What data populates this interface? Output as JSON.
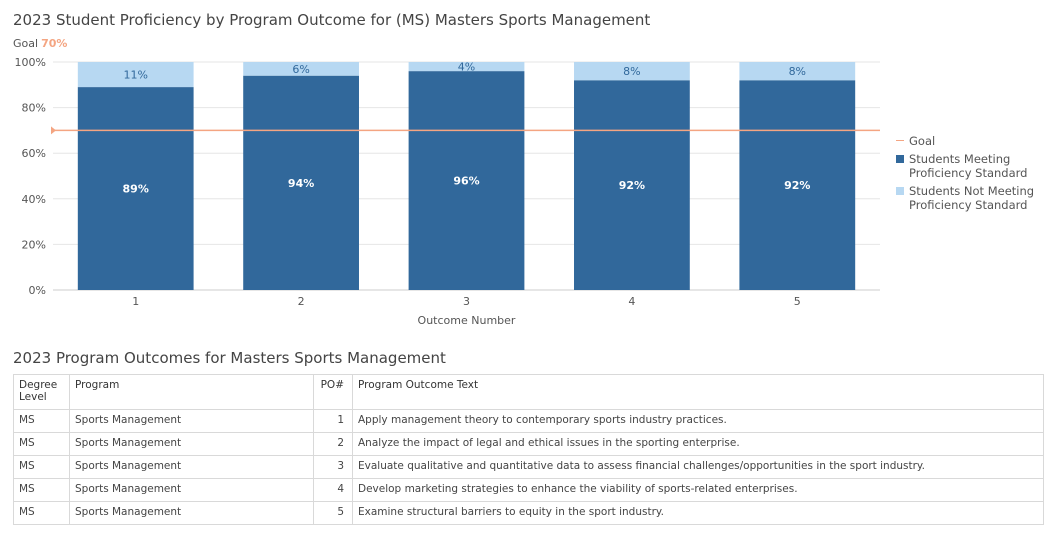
{
  "chart_title": "2023 Student Proficiency by Program Outcome for (MS) Masters Sports Management",
  "goal_prefix": "Goal",
  "goal_value_label": "70%",
  "chart_data": {
    "type": "bar",
    "stacked": true,
    "categories": [
      "1",
      "2",
      "3",
      "4",
      "5"
    ],
    "series": [
      {
        "name": "Students Meeting Proficiency Standard",
        "values": [
          89,
          94,
          96,
          92,
          92
        ],
        "labels": [
          "89%",
          "94%",
          "96%",
          "92%",
          "92%"
        ],
        "color": "#31689b"
      },
      {
        "name": "Students Not Meeting Proficiency Standard",
        "values": [
          11,
          6,
          4,
          8,
          8
        ],
        "labels": [
          "11%",
          "6%",
          "4%",
          "8%",
          "8%"
        ],
        "color": "#b7d8f2"
      }
    ],
    "goal": {
      "name": "Goal",
      "value": 70,
      "color": "#f4a582"
    },
    "xlabel": "Outcome Number",
    "ylabel": "",
    "ylim": [
      0,
      100
    ],
    "yticks": [
      "0%",
      "20%",
      "40%",
      "60%",
      "80%",
      "100%"
    ],
    "legend_position": "right",
    "grid": true
  },
  "legend": {
    "goal": "Goal",
    "meeting": "Students Meeting Proficiency Standard",
    "not_meeting": "Students Not Meeting Proficiency Standard"
  },
  "table": {
    "title": "2023 Program Outcomes for Masters Sports Management",
    "headers": {
      "degree": "Degree Level",
      "program": "Program",
      "po": "PO#",
      "text": "Program Outcome Text"
    },
    "rows": [
      {
        "degree": "MS",
        "program": "Sports Management",
        "po": "1",
        "text": "Apply management theory to contemporary sports industry practices."
      },
      {
        "degree": "MS",
        "program": "Sports Management",
        "po": "2",
        "text": "Analyze the impact of legal and ethical issues in the sporting enterprise."
      },
      {
        "degree": "MS",
        "program": "Sports Management",
        "po": "3",
        "text": "Evaluate qualitative and quantitative data to assess financial challenges/opportunities in the sport industry."
      },
      {
        "degree": "MS",
        "program": "Sports Management",
        "po": "4",
        "text": "Develop marketing strategies to enhance the viability of sports-related enterprises."
      },
      {
        "degree": "MS",
        "program": "Sports Management",
        "po": "5",
        "text": "Examine structural barriers to equity in the sport industry."
      }
    ]
  }
}
